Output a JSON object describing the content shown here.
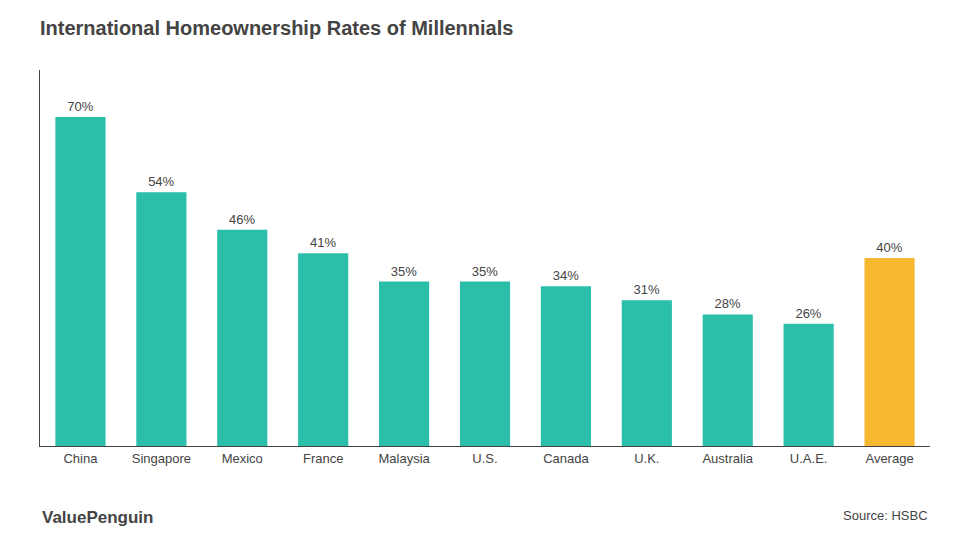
{
  "chart_data": {
    "type": "bar",
    "title": "International Homeownership Rates of Millennials",
    "categories": [
      "China",
      "Singapore",
      "Mexico",
      "France",
      "Malaysia",
      "U.S.",
      "Canada",
      "U.K.",
      "Australia",
      "U.A.E.",
      "Average"
    ],
    "values": [
      70,
      54,
      46,
      41,
      35,
      35,
      34,
      31,
      28,
      26,
      40
    ],
    "value_labels": [
      "70%",
      "54%",
      "46%",
      "41%",
      "35%",
      "35%",
      "34%",
      "31%",
      "28%",
      "26%",
      "40%"
    ],
    "colors": [
      "#2bbfaa",
      "#2bbfaa",
      "#2bbfaa",
      "#2bbfaa",
      "#2bbfaa",
      "#2bbfaa",
      "#2bbfaa",
      "#2bbfaa",
      "#2bbfaa",
      "#2bbfaa",
      "#f5b830"
    ],
    "ylim": [
      0,
      80
    ],
    "grid": false,
    "data_labels": true,
    "tick_labels": "x",
    "annotations": [
      "Source: HSBC",
      "ValuePenguin"
    ]
  }
}
